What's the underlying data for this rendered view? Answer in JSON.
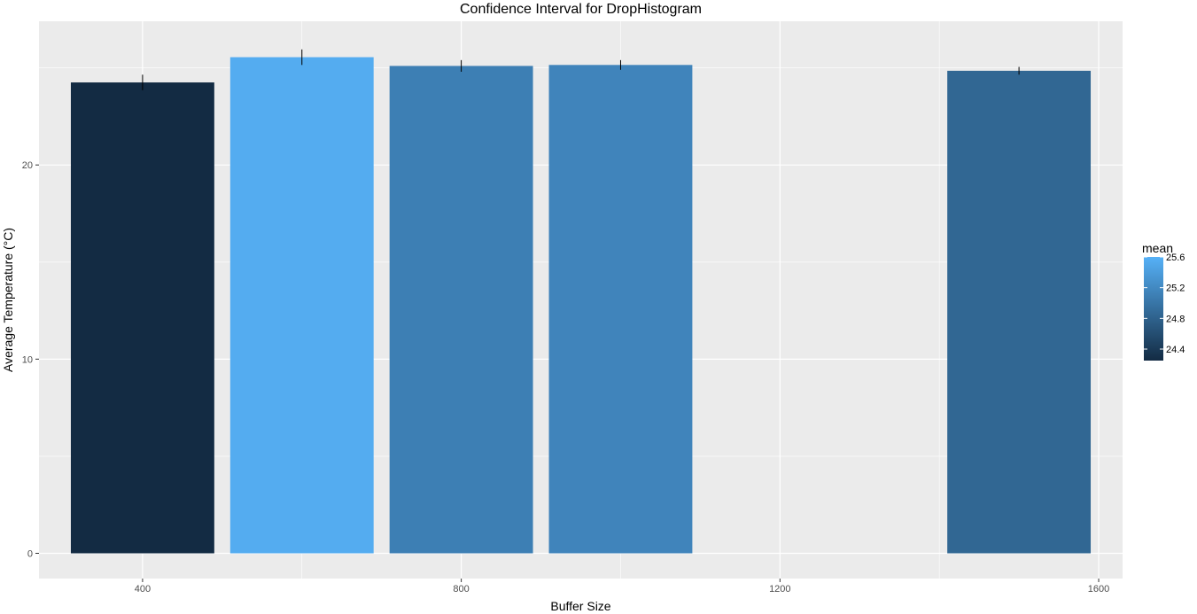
{
  "chart_data": {
    "type": "bar",
    "title": "Confidence Interval for DropHistogram",
    "xlabel": "Buffer Size",
    "ylabel": "Average Temperature (°C)",
    "x": [
      400,
      600,
      800,
      1000,
      1500
    ],
    "values": [
      24.25,
      25.55,
      25.1,
      25.15,
      24.85
    ],
    "error_low": [
      23.85,
      25.15,
      24.8,
      24.9,
      24.65
    ],
    "error_high": [
      24.65,
      25.95,
      25.4,
      25.4,
      25.05
    ],
    "bar_width": 180,
    "xlim": [
      270,
      1630
    ],
    "ylim": [
      -1.3,
      27.4
    ],
    "xticks": [
      400,
      800,
      1200,
      1600
    ],
    "xtick_labels": [
      "400",
      "800",
      "1200",
      "1600"
    ],
    "yticks": [
      0,
      10,
      20
    ],
    "ytick_labels": [
      "0",
      "10",
      "20"
    ],
    "grid": true,
    "legend": {
      "title": "mean",
      "position": "right",
      "type": "colorbar",
      "range": [
        24.25,
        25.6
      ],
      "ticks": [
        24.4,
        24.8,
        25.2,
        25.6
      ],
      "tick_labels": [
        "24.4",
        "24.8",
        "25.2",
        "25.6"
      ],
      "low_color": "#132B43",
      "high_color": "#56B1F7"
    },
    "colors": {
      "panel_background": "#EBEBEB",
      "grid_major": "#FFFFFF",
      "error_bar": "#000000"
    }
  }
}
